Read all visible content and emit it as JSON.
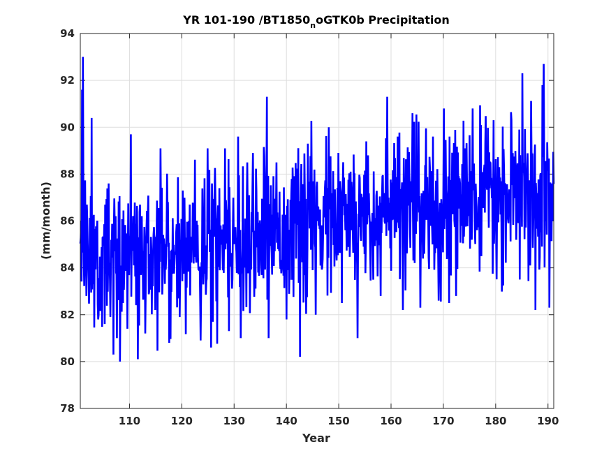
{
  "chart_data": {
    "type": "line",
    "title_parts": [
      "YR 101-190 /BT1850",
      "n",
      "oGTK0b Precipitation"
    ],
    "xlabel": "Year",
    "ylabel": "(mm/month)",
    "xlim": [
      100.6,
      191.1
    ],
    "ylim": [
      78,
      94
    ],
    "xticks": [
      110,
      120,
      130,
      140,
      150,
      160,
      170,
      180,
      190
    ],
    "yticks": [
      78,
      80,
      82,
      84,
      86,
      88,
      90,
      92,
      94
    ],
    "grid": true,
    "line_color": "#0000ff",
    "axis_color": "#262626",
    "grid_color": "#dddddd",
    "series": [
      {
        "samples_per_year": 12,
        "x_start": 100.6,
        "trend": [
          [
            100.6,
            84.6
          ],
          [
            110,
            84.6
          ],
          [
            120,
            84.9
          ],
          [
            130,
            85.4
          ],
          [
            140,
            85.8
          ],
          [
            150,
            86.0
          ],
          [
            160,
            86.3
          ],
          [
            170,
            86.7
          ],
          [
            180,
            86.9
          ],
          [
            191.1,
            87.2
          ]
        ],
        "extremes": [
          [
            100.9,
            91.6
          ],
          [
            101.1,
            93.0
          ],
          [
            101.4,
            85.2
          ],
          [
            102.5,
            84.3
          ],
          [
            102.8,
            90.4
          ],
          [
            103.0,
            83.3
          ],
          [
            104.0,
            81.8
          ],
          [
            105.3,
            81.6
          ],
          [
            106.0,
            87.6
          ],
          [
            106.9,
            80.3
          ],
          [
            107.6,
            81.0
          ],
          [
            108.2,
            80.0
          ],
          [
            109.6,
            81.4
          ],
          [
            110.3,
            89.7
          ],
          [
            111.6,
            80.1
          ],
          [
            113.0,
            81.2
          ],
          [
            114.9,
            82.2
          ],
          [
            115.9,
            89.1
          ],
          [
            117.6,
            80.8
          ],
          [
            119.6,
            81.9
          ],
          [
            121.5,
            86.7
          ],
          [
            123.6,
            80.9
          ],
          [
            124.9,
            89.1
          ],
          [
            125.6,
            80.6
          ],
          [
            127.2,
            87.4
          ],
          [
            128.3,
            89.1
          ],
          [
            129.0,
            81.3
          ],
          [
            130.8,
            89.6
          ],
          [
            131.3,
            81.0
          ],
          [
            132.5,
            88.5
          ],
          [
            134.6,
            83.8
          ],
          [
            135.8,
            88.8
          ],
          [
            136.3,
            91.3
          ],
          [
            136.6,
            81.0
          ],
          [
            138.1,
            88.5
          ],
          [
            140.0,
            81.8
          ],
          [
            142.6,
            80.2
          ],
          [
            144.1,
            89.3
          ],
          [
            145.6,
            82.0
          ],
          [
            148.1,
            90.0
          ],
          [
            150.6,
            82.5
          ],
          [
            153.6,
            81.0
          ],
          [
            155.6,
            88.8
          ],
          [
            158.0,
            82.8
          ],
          [
            159.3,
            91.3
          ],
          [
            161.3,
            89.6
          ],
          [
            162.3,
            82.2
          ],
          [
            164.1,
            90.6
          ],
          [
            165.6,
            82.3
          ],
          [
            168.0,
            89.6
          ],
          [
            169.1,
            82.6
          ],
          [
            170.1,
            90.8
          ],
          [
            172.4,
            82.8
          ],
          [
            174.1,
            89.1
          ],
          [
            175.6,
            90.8
          ],
          [
            178.0,
            89.3
          ],
          [
            179.6,
            90.3
          ],
          [
            181.3,
            84.0
          ],
          [
            183.0,
            90.3
          ],
          [
            184.6,
            83.5
          ],
          [
            185.1,
            92.3
          ],
          [
            186.6,
            84.1
          ],
          [
            187.6,
            82.2
          ],
          [
            188.9,
            91.8
          ],
          [
            189.2,
            92.7
          ],
          [
            190.3,
            82.3
          ],
          [
            190.8,
            87.6
          ]
        ]
      }
    ]
  }
}
